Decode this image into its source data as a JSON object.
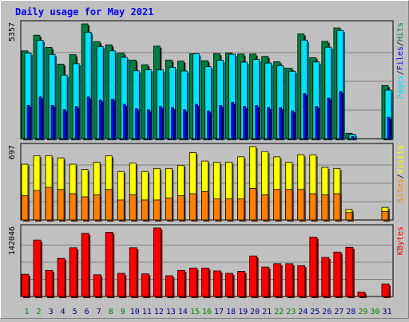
{
  "chart_data": [
    {
      "type": "bar",
      "title": "Daily usage for May 2021",
      "ymax_label": "5357",
      "ylim": [
        0,
        5357
      ],
      "grid": true,
      "categories": [
        "1",
        "2",
        "3",
        "4",
        "5",
        "6",
        "7",
        "8",
        "9",
        "10",
        "11",
        "12",
        "13",
        "14",
        "15",
        "16",
        "17",
        "18",
        "19",
        "20",
        "21",
        "22",
        "23",
        "24",
        "25",
        "26",
        "27",
        "28",
        "29",
        "30",
        "31"
      ],
      "weekend_days": [
        "1",
        "2",
        "8",
        "9",
        "15",
        "16",
        "22",
        "23",
        "29",
        "30"
      ],
      "legend": [
        "Pages",
        "/",
        "Files",
        "/",
        "Hits"
      ],
      "series": [
        {
          "name": "Hits",
          "color": "#008040",
          "values": [
            4100,
            4830,
            4260,
            3480,
            3920,
            5357,
            4530,
            4380,
            4000,
            3670,
            3450,
            4320,
            3670,
            3620,
            3960,
            3640,
            3970,
            4000,
            3950,
            3950,
            3840,
            3590,
            3290,
            4890,
            3780,
            4540,
            5170,
            250,
            0,
            0,
            2480
          ]
        },
        {
          "name": "Files",
          "color": "#00e0ff",
          "values": [
            3990,
            4590,
            3930,
            2970,
            3500,
            4970,
            4300,
            4100,
            3800,
            3170,
            3220,
            3210,
            3330,
            3160,
            3960,
            3360,
            3660,
            3940,
            3570,
            3700,
            3530,
            3410,
            3150,
            4600,
            3580,
            4270,
            5050,
            200,
            0,
            0,
            2270
          ]
        },
        {
          "name": "Pages",
          "color": "#0000ff",
          "values": [
            1550,
            1950,
            1550,
            1350,
            1500,
            1950,
            1800,
            1850,
            1600,
            1400,
            1350,
            1500,
            1450,
            1350,
            1600,
            1300,
            1550,
            1700,
            1500,
            1550,
            1450,
            1450,
            1300,
            2100,
            1500,
            1900,
            2200,
            100,
            0,
            0,
            1000
          ]
        }
      ]
    },
    {
      "type": "bar",
      "ymax_label": "697",
      "ylim": [
        0,
        697
      ],
      "grid": true,
      "legend": [
        "Sites",
        "/",
        "Visits"
      ],
      "series": [
        {
          "name": "Visits",
          "color": "#ffff00",
          "values": [
            530,
            610,
            610,
            590,
            530,
            480,
            550,
            610,
            460,
            540,
            460,
            490,
            490,
            520,
            640,
            560,
            550,
            550,
            600,
            697,
            650,
            600,
            550,
            620,
            620,
            500,
            490,
            100,
            0,
            0,
            120
          ]
        },
        {
          "name": "Sites",
          "color": "#ff8000",
          "values": [
            230,
            280,
            310,
            290,
            250,
            220,
            240,
            290,
            190,
            240,
            190,
            190,
            210,
            230,
            250,
            270,
            200,
            200,
            200,
            300,
            240,
            290,
            290,
            290,
            250,
            240,
            250,
            70,
            0,
            0,
            80
          ]
        }
      ]
    },
    {
      "type": "bar",
      "ymax_label": "142046",
      "ylim": [
        0,
        142046
      ],
      "grid": true,
      "legend": [
        "KBytes"
      ],
      "series": [
        {
          "name": "KBytes",
          "color": "#ff0000",
          "values": [
            46000,
            117000,
            54000,
            79000,
            101000,
            131000,
            45000,
            133000,
            48000,
            101000,
            47000,
            142046,
            43000,
            54000,
            59000,
            59000,
            53000,
            48000,
            52000,
            84000,
            61000,
            68000,
            68000,
            64000,
            123000,
            81000,
            92000,
            102000,
            9000,
            0,
            26000
          ]
        }
      ]
    }
  ]
}
